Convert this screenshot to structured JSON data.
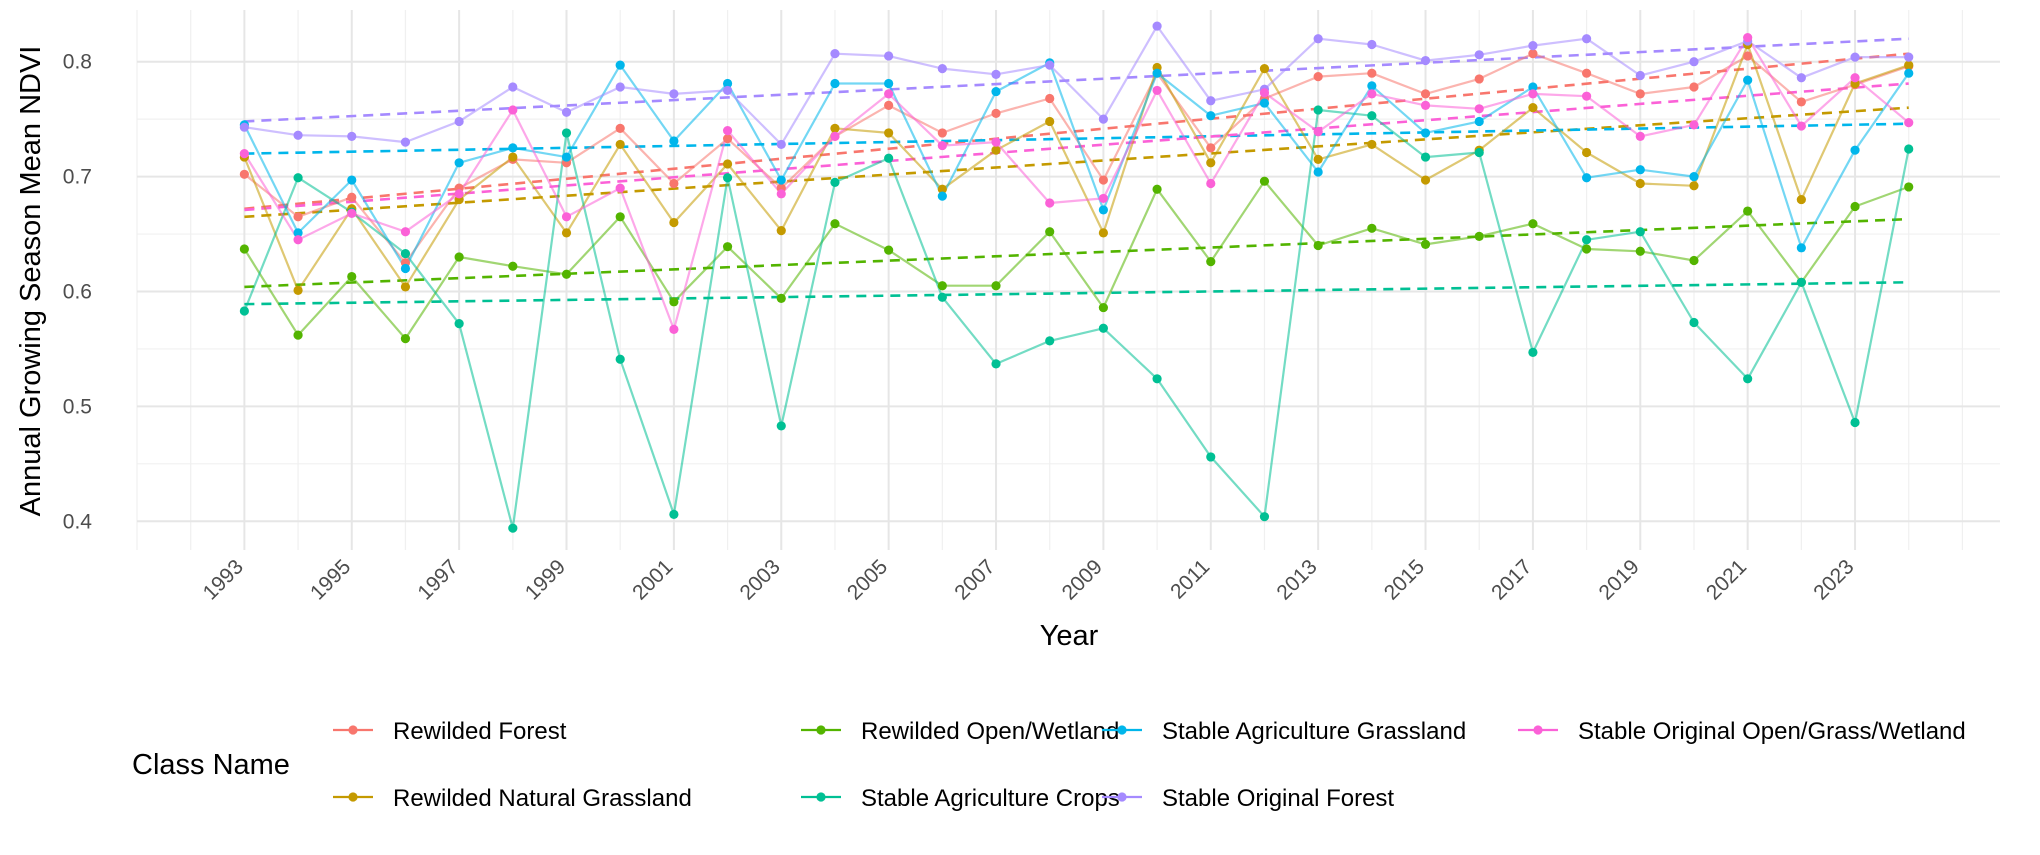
{
  "chart_data": {
    "type": "line",
    "title": "",
    "xlabel": "Year",
    "ylabel": "Annual Growing Season Mean NDVI",
    "xlim": [
      1991.0,
      2025.7
    ],
    "ylim": [
      0.375,
      0.845
    ],
    "x_ticks": [
      1993,
      1995,
      1997,
      1999,
      2001,
      2003,
      2005,
      2007,
      2009,
      2011,
      2013,
      2015,
      2017,
      2019,
      2021,
      2023
    ],
    "y_ticks": [
      0.4,
      0.5,
      0.6,
      0.7,
      0.8
    ],
    "y_tick_labels": [
      "0.4",
      "0.5",
      "0.6",
      "0.7",
      "0.8"
    ],
    "grid": true,
    "legend_title": "Class Name",
    "legend_position": "bottom",
    "x": [
      1993,
      1994,
      1995,
      1996,
      1997,
      1998,
      1999,
      2000,
      2001,
      2002,
      2003,
      2004,
      2005,
      2006,
      2007,
      2008,
      2009,
      2010,
      2011,
      2012,
      2013,
      2014,
      2015,
      2016,
      2017,
      2018,
      2019,
      2020,
      2021,
      2022,
      2023,
      2024
    ],
    "series": [
      {
        "name": "Rewilded Forest",
        "color": "#F8766D",
        "values": [
          0.702,
          0.665,
          0.682,
          0.625,
          0.69,
          0.715,
          0.712,
          0.742,
          0.694,
          0.733,
          0.69,
          0.735,
          0.762,
          0.738,
          0.755,
          0.768,
          0.697,
          0.79,
          0.725,
          0.768,
          0.787,
          0.79,
          0.772,
          0.785,
          0.807,
          0.79,
          0.772,
          0.778,
          0.805,
          0.765,
          0.78,
          0.796
        ],
        "trend": [
          0.672,
          0.807
        ]
      },
      {
        "name": "Rewilded Natural Grassland",
        "color": "#C49A00",
        "values": [
          0.717,
          0.601,
          0.672,
          0.604,
          0.68,
          0.717,
          0.651,
          0.728,
          0.66,
          0.711,
          0.653,
          0.742,
          0.738,
          0.689,
          0.723,
          0.748,
          0.651,
          0.795,
          0.712,
          0.794,
          0.715,
          0.728,
          0.697,
          0.723,
          0.76,
          0.721,
          0.694,
          0.692,
          0.815,
          0.68,
          0.781,
          0.797
        ],
        "trend": [
          0.665,
          0.76
        ]
      },
      {
        "name": "Rewilded Open/Wetland",
        "color": "#53B400",
        "values": [
          0.637,
          0.562,
          0.613,
          0.559,
          0.63,
          0.622,
          0.615,
          0.665,
          0.591,
          0.639,
          0.594,
          0.659,
          0.636,
          0.605,
          0.605,
          0.652,
          0.586,
          0.689,
          0.626,
          0.696,
          0.64,
          0.655,
          0.641,
          0.648,
          0.659,
          0.637,
          0.635,
          0.627,
          0.67,
          0.608,
          0.674,
          0.691
        ],
        "trend": [
          0.604,
          0.663
        ]
      },
      {
        "name": "Stable Agriculture Crops",
        "color": "#00C094",
        "values": [
          0.583,
          0.699,
          0.669,
          0.633,
          0.572,
          0.394,
          0.738,
          0.541,
          0.406,
          0.699,
          0.483,
          0.695,
          0.716,
          0.595,
          0.537,
          0.557,
          0.568,
          0.524,
          0.456,
          0.404,
          0.758,
          0.753,
          0.717,
          0.721,
          0.547,
          0.645,
          0.652,
          0.573,
          0.524,
          0.608,
          0.486,
          0.724
        ],
        "trend": [
          0.589,
          0.608
        ]
      },
      {
        "name": "Stable Agriculture Grassland",
        "color": "#00B6EB",
        "values": [
          0.745,
          0.651,
          0.697,
          0.62,
          0.712,
          0.725,
          0.717,
          0.797,
          0.731,
          0.781,
          0.697,
          0.781,
          0.781,
          0.683,
          0.774,
          0.799,
          0.671,
          0.79,
          0.753,
          0.764,
          0.704,
          0.779,
          0.738,
          0.748,
          0.778,
          0.699,
          0.706,
          0.7,
          0.784,
          0.638,
          0.723,
          0.79
        ],
        "trend": [
          0.72,
          0.746
        ]
      },
      {
        "name": "Stable Original Forest",
        "color": "#A58AFF",
        "values": [
          0.743,
          0.736,
          0.735,
          0.73,
          0.748,
          0.778,
          0.756,
          0.778,
          0.772,
          0.775,
          0.728,
          0.807,
          0.805,
          0.794,
          0.789,
          0.797,
          0.75,
          0.831,
          0.766,
          0.776,
          0.82,
          0.815,
          0.801,
          0.806,
          0.814,
          0.82,
          0.788,
          0.8,
          0.818,
          0.786,
          0.804,
          0.804
        ],
        "trend": [
          0.748,
          0.82
        ]
      },
      {
        "name": "Stable Original Open/Grass/Wetland",
        "color": "#FB61D7",
        "values": [
          0.72,
          0.645,
          0.668,
          0.652,
          0.685,
          0.758,
          0.665,
          0.69,
          0.567,
          0.74,
          0.685,
          0.735,
          0.772,
          0.727,
          0.73,
          0.677,
          0.681,
          0.775,
          0.694,
          0.773,
          0.739,
          0.772,
          0.762,
          0.759,
          0.772,
          0.77,
          0.735,
          0.745,
          0.821,
          0.744,
          0.786,
          0.747
        ],
        "trend": [
          0.671,
          0.781
        ]
      }
    ]
  }
}
